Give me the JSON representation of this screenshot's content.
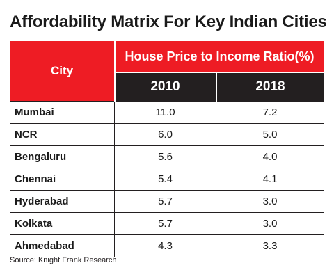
{
  "title": "Affordability Matrix For Key Indian Cities",
  "source": "Source: Knight Frank Research",
  "colors": {
    "header_red": "#ee1c24",
    "header_dark": "#231f20"
  },
  "chart_data": {
    "type": "table",
    "title": "Affordability Matrix For Key Indian Cities",
    "row_header": "City",
    "column_group_header": "House Price to Income Ratio(%)",
    "columns": [
      "2010",
      "2018"
    ],
    "rows": [
      {
        "city": "Mumbai",
        "values": [
          "11.0",
          "7.2"
        ]
      },
      {
        "city": "NCR",
        "values": [
          "6.0",
          "5.0"
        ]
      },
      {
        "city": "Bengaluru",
        "values": [
          "5.6",
          "4.0"
        ]
      },
      {
        "city": "Chennai",
        "values": [
          "5.4",
          "4.1"
        ]
      },
      {
        "city": "Hyderabad",
        "values": [
          "5.7",
          "3.0"
        ]
      },
      {
        "city": "Kolkata",
        "values": [
          "5.7",
          "3.0"
        ]
      },
      {
        "city": "Ahmedabad",
        "values": [
          "4.3",
          "3.3"
        ]
      }
    ]
  }
}
